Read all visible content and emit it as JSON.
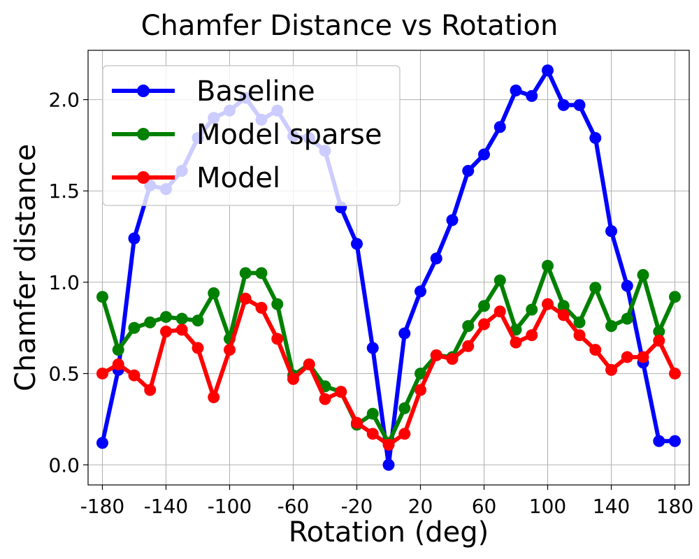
{
  "chart_data": {
    "type": "line",
    "title": "Chamfer Distance vs Rotation",
    "xlabel": "Rotation (deg)",
    "ylabel": "Chamfer distance",
    "xlim": [
      -189,
      189
    ],
    "ylim": [
      -0.11,
      2.27
    ],
    "xticks": [
      -180,
      -140,
      -100,
      -60,
      -20,
      20,
      60,
      100,
      140,
      180
    ],
    "xtick_labels": [
      "-180",
      "-140",
      "-100",
      "-60",
      "-20",
      "20",
      "60",
      "100",
      "140",
      "180"
    ],
    "yticks": [
      0.0,
      0.5,
      1.0,
      1.5,
      2.0
    ],
    "ytick_labels": [
      "0.0",
      "0.5",
      "1.0",
      "1.5",
      "2.0"
    ],
    "grid": true,
    "legend_position": "top-left",
    "x": [
      -180,
      -170,
      -160,
      -150,
      -140,
      -130,
      -120,
      -110,
      -100,
      -90,
      -80,
      -70,
      -60,
      -50,
      -40,
      -30,
      -20,
      -10,
      0,
      10,
      20,
      30,
      40,
      50,
      60,
      70,
      80,
      90,
      100,
      110,
      120,
      130,
      140,
      150,
      160,
      170,
      180
    ],
    "series": [
      {
        "name": "Baseline",
        "color": "#0000ff",
        "values": [
          0.12,
          0.52,
          1.24,
          1.53,
          1.51,
          1.61,
          1.79,
          1.9,
          1.94,
          2.01,
          1.89,
          1.94,
          1.8,
          1.79,
          1.72,
          1.41,
          1.21,
          0.64,
          0.0,
          0.72,
          0.95,
          1.13,
          1.34,
          1.61,
          1.7,
          1.85,
          2.05,
          2.02,
          2.16,
          1.97,
          1.97,
          1.79,
          1.28,
          0.98,
          0.56,
          0.13,
          0.13
        ]
      },
      {
        "name": "Model sparse",
        "color": "#008000",
        "values": [
          0.92,
          0.63,
          0.75,
          0.78,
          0.81,
          0.8,
          0.79,
          0.94,
          0.69,
          1.05,
          1.05,
          0.88,
          0.49,
          0.55,
          0.43,
          0.4,
          0.22,
          0.28,
          0.12,
          0.31,
          0.5,
          0.6,
          0.59,
          0.76,
          0.87,
          1.01,
          0.74,
          0.85,
          1.09,
          0.87,
          0.78,
          0.97,
          0.76,
          0.8,
          1.04,
          0.73,
          0.92
        ]
      },
      {
        "name": "Model",
        "color": "#ff0000",
        "values": [
          0.5,
          0.55,
          0.49,
          0.41,
          0.73,
          0.74,
          0.64,
          0.37,
          0.63,
          0.91,
          0.86,
          0.69,
          0.47,
          0.55,
          0.36,
          0.4,
          0.23,
          0.17,
          0.11,
          0.17,
          0.41,
          0.6,
          0.58,
          0.65,
          0.77,
          0.84,
          0.67,
          0.71,
          0.88,
          0.82,
          0.71,
          0.63,
          0.52,
          0.59,
          0.59,
          0.68,
          0.5
        ]
      }
    ]
  }
}
